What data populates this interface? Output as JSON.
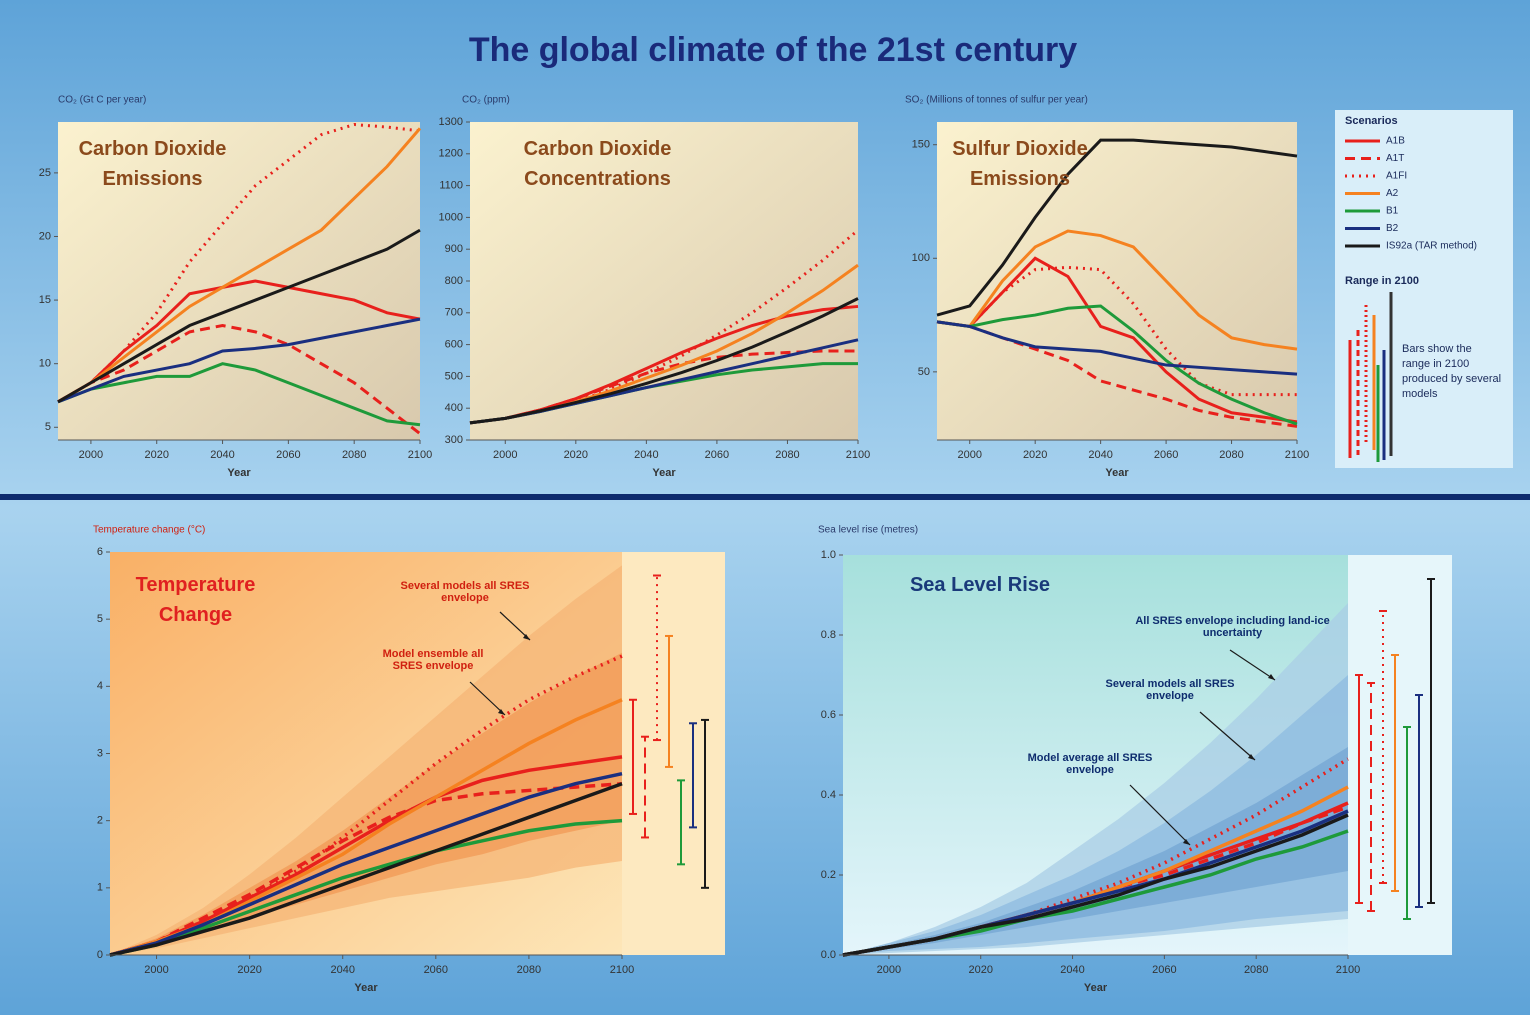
{
  "title": "The global climate of the 21st century",
  "legend": {
    "title": "Scenarios",
    "range_title": "Range in 2100",
    "range_note": "Bars show the range in 2100 produced by several models"
  },
  "chart_data": [
    {
      "type": "line",
      "title": "Carbon Dioxide Emissions",
      "ylabel": "CO₂ (Gt C per year)",
      "xlabel": "Year",
      "x": [
        1990,
        2000,
        2010,
        2020,
        2030,
        2040,
        2050,
        2060,
        2070,
        2080,
        2090,
        2100
      ],
      "xlim": [
        1990,
        2100
      ],
      "xticks": [
        2000,
        2020,
        2040,
        2060,
        2080,
        2100
      ],
      "ylim": [
        4,
        29
      ],
      "yticks": [
        5,
        10,
        15,
        20,
        25
      ],
      "series": [
        {
          "name": "A1B",
          "color": "#e8201c",
          "dash": "solid",
          "values": [
            7,
            8.5,
            11,
            13,
            15.5,
            16,
            16.5,
            16,
            15.5,
            15,
            14,
            13.5
          ]
        },
        {
          "name": "A1T",
          "color": "#e8201c",
          "dash": "dashed",
          "values": [
            7,
            8.5,
            9.5,
            11,
            12.5,
            13,
            12.5,
            11.5,
            10,
            8.5,
            6.5,
            4.5
          ]
        },
        {
          "name": "A1FI",
          "color": "#e8201c",
          "dash": "dotted",
          "values": [
            7,
            8.5,
            11,
            14,
            18,
            21,
            24,
            26,
            28,
            28.8,
            28.6,
            28.3
          ]
        },
        {
          "name": "A2",
          "color": "#f58220",
          "dash": "solid",
          "values": [
            7,
            8.5,
            10.5,
            12.5,
            14.5,
            16,
            17.5,
            19,
            20.5,
            23,
            25.5,
            28.5
          ]
        },
        {
          "name": "B1",
          "color": "#1e9a3a",
          "dash": "solid",
          "values": [
            7,
            8,
            8.5,
            9,
            9,
            10,
            9.5,
            8.5,
            7.5,
            6.5,
            5.5,
            5.2
          ]
        },
        {
          "name": "B2",
          "color": "#1a2f80",
          "dash": "solid",
          "values": [
            7,
            8,
            9,
            9.5,
            10,
            11,
            11.2,
            11.5,
            12,
            12.5,
            13,
            13.5
          ]
        },
        {
          "name": "IS92a (TAR method)",
          "color": "#1a1a1a",
          "dash": "solid",
          "values": [
            7,
            8.5,
            10,
            11.5,
            13,
            14,
            15,
            16,
            17,
            18,
            19,
            20.5
          ]
        }
      ]
    },
    {
      "type": "line",
      "title": "Carbon Dioxide Concentrations",
      "ylabel": "CO₂ (ppm)",
      "xlabel": "Year",
      "x": [
        1990,
        2000,
        2010,
        2020,
        2030,
        2040,
        2050,
        2060,
        2070,
        2080,
        2090,
        2100
      ],
      "xlim": [
        1990,
        2100
      ],
      "xticks": [
        2000,
        2020,
        2040,
        2060,
        2080,
        2100
      ],
      "ylim": [
        300,
        1300
      ],
      "yticks": [
        300,
        400,
        500,
        600,
        700,
        800,
        900,
        1000,
        1100,
        1200,
        1300
      ],
      "series": [
        {
          "name": "A1B",
          "color": "#e8201c",
          "dash": "solid",
          "values": [
            354,
            368,
            395,
            430,
            475,
            525,
            575,
            620,
            660,
            690,
            710,
            720
          ]
        },
        {
          "name": "A1T",
          "color": "#e8201c",
          "dash": "dashed",
          "values": [
            354,
            368,
            395,
            430,
            470,
            510,
            540,
            560,
            570,
            575,
            580,
            580
          ]
        },
        {
          "name": "A1FI",
          "color": "#e8201c",
          "dash": "dotted",
          "values": [
            354,
            368,
            390,
            420,
            460,
            510,
            565,
            630,
            700,
            780,
            865,
            960
          ]
        },
        {
          "name": "A2",
          "color": "#f58220",
          "dash": "solid",
          "values": [
            354,
            368,
            390,
            420,
            455,
            495,
            535,
            580,
            635,
            700,
            770,
            850
          ]
        },
        {
          "name": "B1",
          "color": "#1e9a3a",
          "dash": "solid",
          "values": [
            354,
            368,
            390,
            415,
            440,
            465,
            485,
            505,
            520,
            530,
            540,
            540
          ]
        },
        {
          "name": "B2",
          "color": "#1a2f80",
          "dash": "solid",
          "values": [
            354,
            368,
            390,
            415,
            440,
            465,
            490,
            515,
            540,
            565,
            590,
            615
          ]
        },
        {
          "name": "IS92a (TAR method)",
          "color": "#1a1a1a",
          "dash": "solid",
          "values": [
            354,
            368,
            392,
            418,
            446,
            478,
            512,
            550,
            592,
            640,
            690,
            745
          ]
        }
      ]
    },
    {
      "type": "line",
      "title": "Sulfur Dioxide Emissions",
      "ylabel": "SO₂ (Millions of tonnes of sulfur per year)",
      "xlabel": "Year",
      "x": [
        1990,
        2000,
        2010,
        2020,
        2030,
        2040,
        2050,
        2060,
        2070,
        2080,
        2090,
        2100
      ],
      "xlim": [
        1990,
        2100
      ],
      "xticks": [
        2000,
        2020,
        2040,
        2060,
        2080,
        2100
      ],
      "ylim": [
        20,
        160
      ],
      "yticks": [
        50,
        100,
        150
      ],
      "series": [
        {
          "name": "A1B",
          "color": "#e8201c",
          "dash": "solid",
          "values": [
            72,
            70,
            85,
            100,
            92,
            70,
            65,
            50,
            38,
            32,
            30,
            28
          ]
        },
        {
          "name": "A1T",
          "color": "#e8201c",
          "dash": "dashed",
          "values": [
            72,
            70,
            65,
            60,
            55,
            46,
            42,
            38,
            33,
            30,
            28,
            26
          ]
        },
        {
          "name": "A1FI",
          "color": "#e8201c",
          "dash": "dotted",
          "values": [
            72,
            70,
            85,
            95,
            96,
            95,
            80,
            60,
            45,
            40,
            40,
            40
          ]
        },
        {
          "name": "A2",
          "color": "#f58220",
          "dash": "solid",
          "values": [
            72,
            70,
            90,
            105,
            112,
            110,
            105,
            90,
            75,
            65,
            62,
            60
          ]
        },
        {
          "name": "B1",
          "color": "#1e9a3a",
          "dash": "solid",
          "values": [
            72,
            70,
            73,
            75,
            78,
            79,
            68,
            55,
            45,
            38,
            32,
            27
          ]
        },
        {
          "name": "B2",
          "color": "#1a2f80",
          "dash": "solid",
          "values": [
            72,
            70,
            65,
            61,
            60,
            59,
            56,
            53,
            52,
            51,
            50,
            49
          ]
        },
        {
          "name": "IS92a (TAR method)",
          "color": "#1a1a1a",
          "dash": "solid",
          "values": [
            75,
            79,
            97,
            118,
            137,
            152,
            152,
            151,
            150,
            149,
            147,
            145
          ]
        }
      ]
    },
    {
      "type": "line",
      "title": "Temperature Change",
      "ylabel": "Temperature change (°C)",
      "xlabel": "Year",
      "x": [
        1990,
        2000,
        2010,
        2020,
        2030,
        2040,
        2050,
        2060,
        2070,
        2080,
        2090,
        2100
      ],
      "xlim": [
        1990,
        2100
      ],
      "xticks": [
        2000,
        2020,
        2040,
        2060,
        2080,
        2100
      ],
      "ylim": [
        0,
        6
      ],
      "yticks": [
        0,
        1,
        2,
        3,
        4,
        5,
        6
      ],
      "bands": [
        {
          "name": "Several models all SRES envelope",
          "color": "#f6b677",
          "lower": [
            0,
            0.1,
            0.25,
            0.4,
            0.55,
            0.7,
            0.85,
            0.95,
            1.05,
            1.15,
            1.3,
            1.4
          ],
          "upper": [
            0,
            0.3,
            0.7,
            1.2,
            1.75,
            2.35,
            2.95,
            3.55,
            4.15,
            4.75,
            5.3,
            5.8
          ]
        },
        {
          "name": "Model ensemble all SRES envelope",
          "color": "#f29a55",
          "lower": [
            0,
            0.15,
            0.35,
            0.55,
            0.75,
            0.95,
            1.15,
            1.35,
            1.5,
            1.7,
            1.85,
            2.0
          ],
          "upper": [
            0,
            0.25,
            0.6,
            1.0,
            1.4,
            1.85,
            2.35,
            2.85,
            3.3,
            3.75,
            4.15,
            4.5
          ]
        }
      ],
      "series": [
        {
          "name": "A1B",
          "color": "#e8201c",
          "dash": "solid",
          "values": [
            0,
            0.2,
            0.5,
            0.85,
            1.2,
            1.6,
            2.0,
            2.35,
            2.6,
            2.75,
            2.85,
            2.95
          ],
          "range": [
            2.1,
            3.8
          ]
        },
        {
          "name": "A1T",
          "color": "#e8201c",
          "dash": "dashed",
          "values": [
            0,
            0.2,
            0.55,
            0.9,
            1.3,
            1.7,
            2.05,
            2.3,
            2.4,
            2.45,
            2.5,
            2.55
          ],
          "range": [
            1.75,
            3.25
          ]
        },
        {
          "name": "A1FI",
          "color": "#e8201c",
          "dash": "dotted",
          "values": [
            0,
            0.2,
            0.5,
            0.85,
            1.25,
            1.75,
            2.3,
            2.85,
            3.35,
            3.8,
            4.15,
            4.45
          ],
          "range": [
            3.2,
            5.65
          ]
        },
        {
          "name": "A2",
          "color": "#f58220",
          "dash": "solid",
          "values": [
            0,
            0.2,
            0.45,
            0.8,
            1.15,
            1.5,
            1.95,
            2.35,
            2.75,
            3.15,
            3.5,
            3.8
          ],
          "range": [
            2.8,
            4.75
          ]
        },
        {
          "name": "B1",
          "color": "#1e9a3a",
          "dash": "solid",
          "values": [
            0,
            0.15,
            0.4,
            0.65,
            0.9,
            1.15,
            1.35,
            1.55,
            1.7,
            1.85,
            1.95,
            2.0
          ],
          "range": [
            1.35,
            2.6
          ]
        },
        {
          "name": "B2",
          "color": "#1a2f80",
          "dash": "solid",
          "values": [
            0,
            0.18,
            0.45,
            0.75,
            1.05,
            1.35,
            1.6,
            1.85,
            2.1,
            2.35,
            2.55,
            2.7
          ],
          "range": [
            1.9,
            3.45
          ]
        },
        {
          "name": "IS92a (TAR method)",
          "color": "#1a1a1a",
          "dash": "solid",
          "values": [
            0,
            0.15,
            0.35,
            0.55,
            0.8,
            1.05,
            1.3,
            1.55,
            1.8,
            2.05,
            2.3,
            2.55
          ],
          "range": [
            1.0,
            3.5
          ]
        }
      ]
    },
    {
      "type": "line",
      "title": "Sea Level Rise",
      "ylabel": "Sea level rise (metres)",
      "xlabel": "Year",
      "x": [
        1990,
        2000,
        2010,
        2020,
        2030,
        2040,
        2050,
        2060,
        2070,
        2080,
        2090,
        2100
      ],
      "xlim": [
        1990,
        2100
      ],
      "xticks": [
        2000,
        2020,
        2040,
        2060,
        2080,
        2100
      ],
      "ylim": [
        0,
        1
      ],
      "yticks": [
        {
          "value": 0,
          "label": "0.0"
        },
        0.2,
        0.4,
        0.6,
        0.8,
        {
          "value": 1,
          "label": "1.0"
        }
      ],
      "bands": [
        {
          "name": "All SRES envelope including land-ice uncertainty",
          "color": "#a9cde6",
          "lower": [
            0,
            0.005,
            0.01,
            0.015,
            0.02,
            0.03,
            0.04,
            0.05,
            0.06,
            0.07,
            0.08,
            0.09
          ],
          "upper": [
            0,
            0.03,
            0.07,
            0.12,
            0.18,
            0.26,
            0.34,
            0.43,
            0.53,
            0.64,
            0.76,
            0.88
          ]
        },
        {
          "name": "Several models all SRES envelope",
          "color": "#8dbbe0",
          "lower": [
            0,
            0.01,
            0.015,
            0.02,
            0.03,
            0.04,
            0.05,
            0.06,
            0.075,
            0.09,
            0.1,
            0.11
          ],
          "upper": [
            0,
            0.03,
            0.06,
            0.1,
            0.15,
            0.2,
            0.26,
            0.33,
            0.41,
            0.5,
            0.6,
            0.7
          ]
        },
        {
          "name": "Model average all SRES envelope",
          "color": "#74a6d3",
          "lower": [
            0,
            0.015,
            0.03,
            0.05,
            0.07,
            0.09,
            0.11,
            0.13,
            0.15,
            0.17,
            0.19,
            0.21
          ],
          "upper": [
            0,
            0.025,
            0.05,
            0.08,
            0.12,
            0.16,
            0.21,
            0.26,
            0.32,
            0.38,
            0.45,
            0.52
          ]
        }
      ],
      "series": [
        {
          "name": "A1B",
          "color": "#e8201c",
          "dash": "solid",
          "values": [
            0,
            0.02,
            0.04,
            0.07,
            0.1,
            0.13,
            0.17,
            0.21,
            0.25,
            0.29,
            0.33,
            0.38
          ],
          "range": [
            0.13,
            0.7
          ]
        },
        {
          "name": "A1T",
          "color": "#e8201c",
          "dash": "dashed",
          "values": [
            0,
            0.02,
            0.04,
            0.07,
            0.1,
            0.13,
            0.17,
            0.2,
            0.24,
            0.28,
            0.33,
            0.37
          ],
          "range": [
            0.11,
            0.68
          ]
        },
        {
          "name": "A1FI",
          "color": "#e8201c",
          "dash": "dotted",
          "values": [
            0,
            0.02,
            0.04,
            0.07,
            0.1,
            0.14,
            0.18,
            0.23,
            0.29,
            0.35,
            0.42,
            0.49
          ],
          "range": [
            0.18,
            0.86
          ]
        },
        {
          "name": "A2",
          "color": "#f58220",
          "dash": "solid",
          "values": [
            0,
            0.02,
            0.04,
            0.07,
            0.1,
            0.13,
            0.17,
            0.21,
            0.26,
            0.31,
            0.36,
            0.42
          ],
          "range": [
            0.16,
            0.75
          ]
        },
        {
          "name": "B1",
          "color": "#1e9a3a",
          "dash": "solid",
          "values": [
            0,
            0.02,
            0.04,
            0.06,
            0.09,
            0.11,
            0.14,
            0.17,
            0.2,
            0.24,
            0.27,
            0.31
          ],
          "range": [
            0.09,
            0.57
          ]
        },
        {
          "name": "B2",
          "color": "#1a2f80",
          "dash": "solid",
          "values": [
            0,
            0.02,
            0.04,
            0.07,
            0.1,
            0.13,
            0.16,
            0.19,
            0.23,
            0.27,
            0.31,
            0.36
          ],
          "range": [
            0.12,
            0.65
          ]
        },
        {
          "name": "IS92a (TAR method)",
          "color": "#1a1a1a",
          "dash": "solid",
          "values": [
            0,
            0.02,
            0.04,
            0.07,
            0.09,
            0.12,
            0.15,
            0.19,
            0.22,
            0.26,
            0.3,
            0.35
          ],
          "range": [
            0.13,
            0.94
          ]
        }
      ]
    }
  ]
}
